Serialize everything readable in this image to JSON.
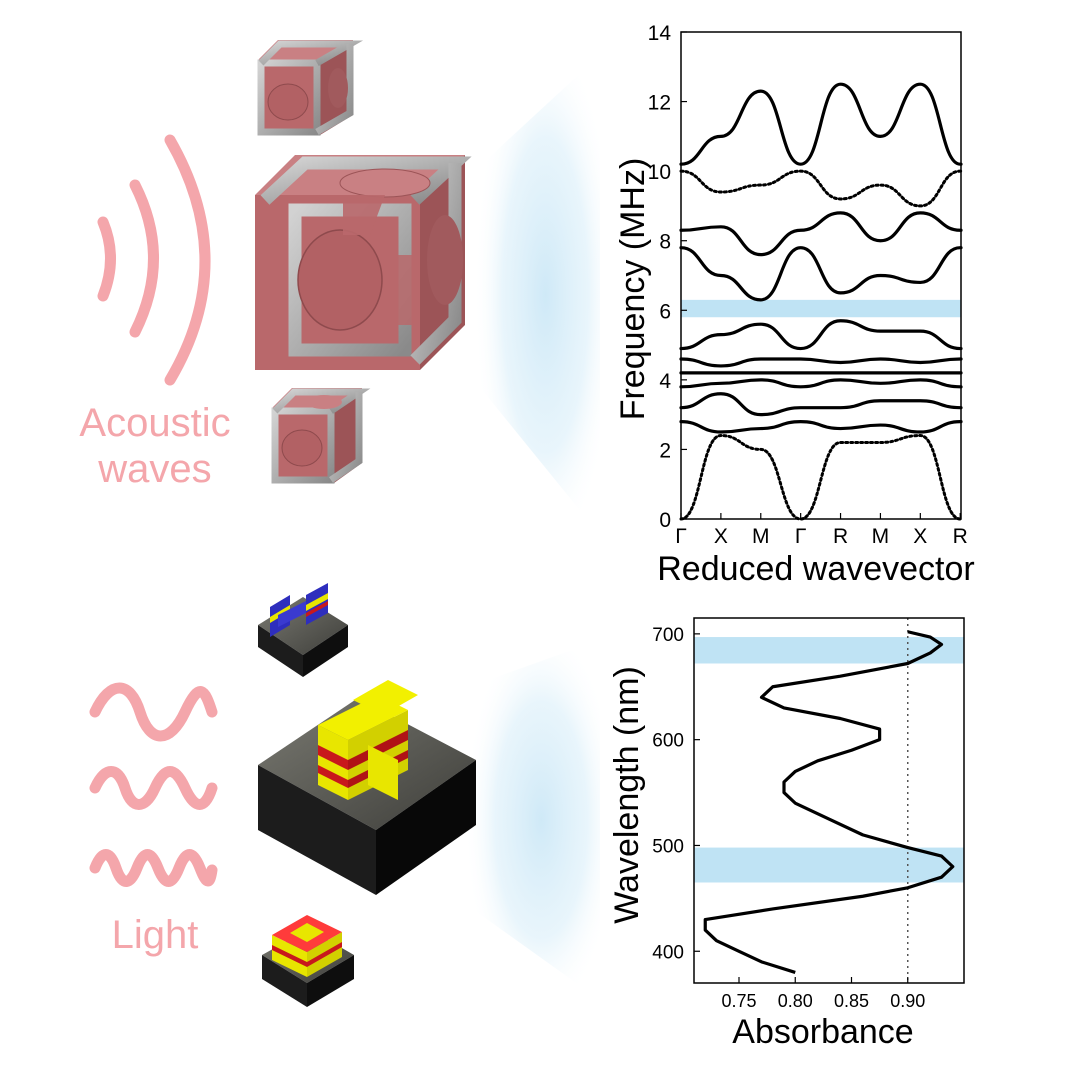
{
  "labels": {
    "acoustic_line1": "Acoustic",
    "acoustic_line2": "waves",
    "light": "Light"
  },
  "colors": {
    "pink": "#f4a6ab",
    "gap_band": "#bfe3f4",
    "beam": "#cfe9f7",
    "cube_face": "#b9686b",
    "frame_gray": "#a7a7a7",
    "gold": "#e8e600",
    "red": "#c8181c",
    "blue": "#2e2ebd",
    "base_dark": "#252525"
  },
  "icons": [
    "acoustic-waves-icon",
    "light-waves-icon",
    "lattice-cube-icon",
    "metasurface-icon"
  ],
  "chart_data": [
    {
      "type": "line",
      "title": "",
      "xlabel": "Reduced wavevector",
      "ylabel": "Frequency (MHz)",
      "ylim": [
        0,
        14
      ],
      "yticks": [
        0,
        2,
        4,
        6,
        8,
        10,
        12,
        14
      ],
      "categories": [
        "Γ",
        "X",
        "M",
        "Γ",
        "R",
        "M",
        "X",
        "R"
      ],
      "band_gap": [
        5.8,
        6.3
      ],
      "grid": false,
      "series": [
        {
          "values": [
            0,
            2.4,
            2.0,
            0,
            2.2,
            2.2,
            2.4,
            0
          ]
        },
        {
          "values": [
            2.8,
            2.5,
            2.6,
            2.8,
            2.6,
            2.7,
            2.5,
            2.8
          ]
        },
        {
          "values": [
            3.2,
            3.6,
            3.0,
            3.2,
            3.2,
            3.4,
            3.4,
            3.2
          ]
        },
        {
          "values": [
            3.8,
            3.9,
            4.0,
            3.8,
            4.0,
            3.9,
            4.0,
            3.8
          ]
        },
        {
          "values": [
            4.2,
            4.2,
            4.2,
            4.2,
            4.2,
            4.2,
            4.2,
            4.2
          ]
        },
        {
          "values": [
            4.6,
            4.4,
            4.6,
            4.6,
            4.5,
            4.6,
            4.5,
            4.6
          ]
        },
        {
          "values": [
            4.9,
            5.3,
            5.6,
            4.9,
            5.7,
            5.4,
            5.4,
            4.9
          ]
        },
        {
          "values": [
            7.8,
            7.0,
            6.3,
            7.8,
            6.5,
            7.0,
            6.8,
            7.8
          ]
        },
        {
          "values": [
            8.3,
            8.4,
            7.6,
            8.3,
            8.8,
            8.0,
            8.8,
            8.3
          ]
        },
        {
          "values": [
            10.0,
            9.4,
            9.6,
            10.0,
            9.2,
            9.6,
            9.0,
            10.0
          ]
        },
        {
          "values": [
            10.2,
            11.0,
            12.3,
            10.2,
            12.5,
            11.0,
            12.5,
            10.2
          ]
        }
      ]
    },
    {
      "type": "line",
      "title": "",
      "xlabel": "Absorbance",
      "ylabel": "Wavelength (nm)",
      "xlim": [
        0.71,
        0.95
      ],
      "ylim": [
        370,
        715
      ],
      "xticks": [
        "0.75",
        "0.80",
        "0.85",
        "0.90"
      ],
      "yticks": [
        "400",
        "500",
        "600",
        "700"
      ],
      "threshold_x": 0.9,
      "bands": [
        [
          465,
          498
        ],
        [
          672,
          697
        ]
      ],
      "grid": false,
      "series": [
        {
          "x": [
            0.8,
            0.77,
            0.75,
            0.73,
            0.72,
            0.72,
            0.78,
            0.86,
            0.9,
            0.93,
            0.94,
            0.93,
            0.9,
            0.86,
            0.83,
            0.8,
            0.79,
            0.79,
            0.8,
            0.82,
            0.85,
            0.875,
            0.875,
            0.84,
            0.79,
            0.77,
            0.78,
            0.84,
            0.9,
            0.92,
            0.93,
            0.92,
            0.9
          ],
          "y": [
            380,
            390,
            400,
            410,
            420,
            430,
            440,
            452,
            460,
            470,
            480,
            490,
            498,
            510,
            525,
            540,
            550,
            560,
            570,
            580,
            590,
            600,
            610,
            620,
            630,
            640,
            650,
            660,
            672,
            682,
            690,
            697,
            702
          ]
        }
      ]
    }
  ]
}
